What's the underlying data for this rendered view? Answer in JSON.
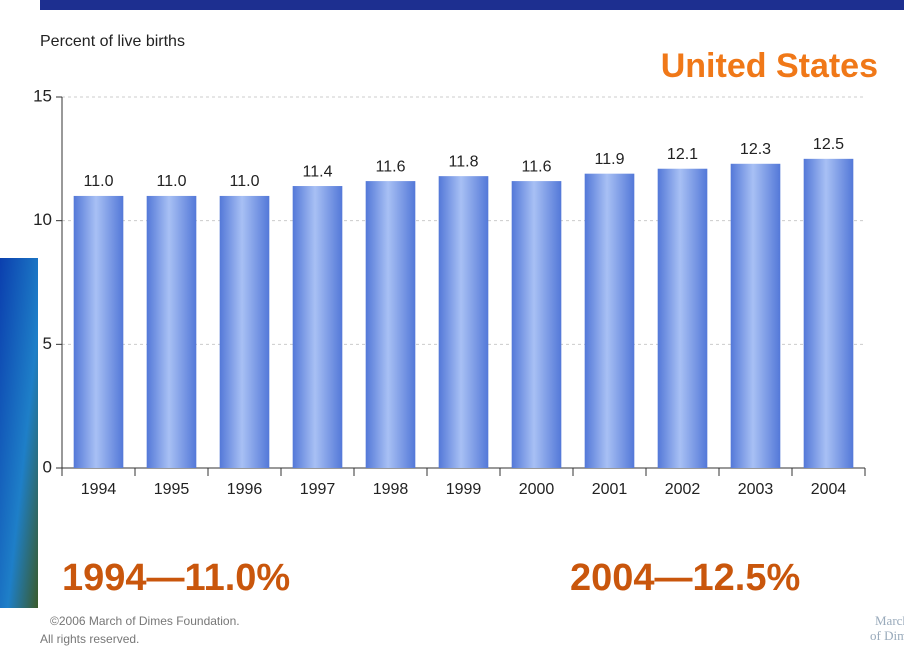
{
  "chart_data": {
    "type": "bar",
    "title": "United States",
    "y_axis_label": "Percent of live births",
    "categories": [
      "1994",
      "1995",
      "1996",
      "1997",
      "1998",
      "1999",
      "2000",
      "2001",
      "2002",
      "2003",
      "2004"
    ],
    "values": [
      11.0,
      11.0,
      11.0,
      11.4,
      11.6,
      11.8,
      11.6,
      11.9,
      12.1,
      12.3,
      12.5
    ],
    "value_labels": [
      "11.0",
      "11.0",
      "11.0",
      "11.4",
      "11.6",
      "11.8",
      "11.6",
      "11.9",
      "12.1",
      "12.3",
      "12.5"
    ],
    "color": "#5378d8",
    "ylim": [
      0,
      15
    ],
    "yticks": [
      0,
      5,
      10,
      15
    ],
    "grid": true,
    "annotations": [
      "1994—11.0%",
      "2004—12.5%"
    ]
  },
  "footer": [
    "©2006 March of Dimes Foundation.",
    "All rights reserved."
  ],
  "logo": [
    "March",
    "of Dimes"
  ]
}
